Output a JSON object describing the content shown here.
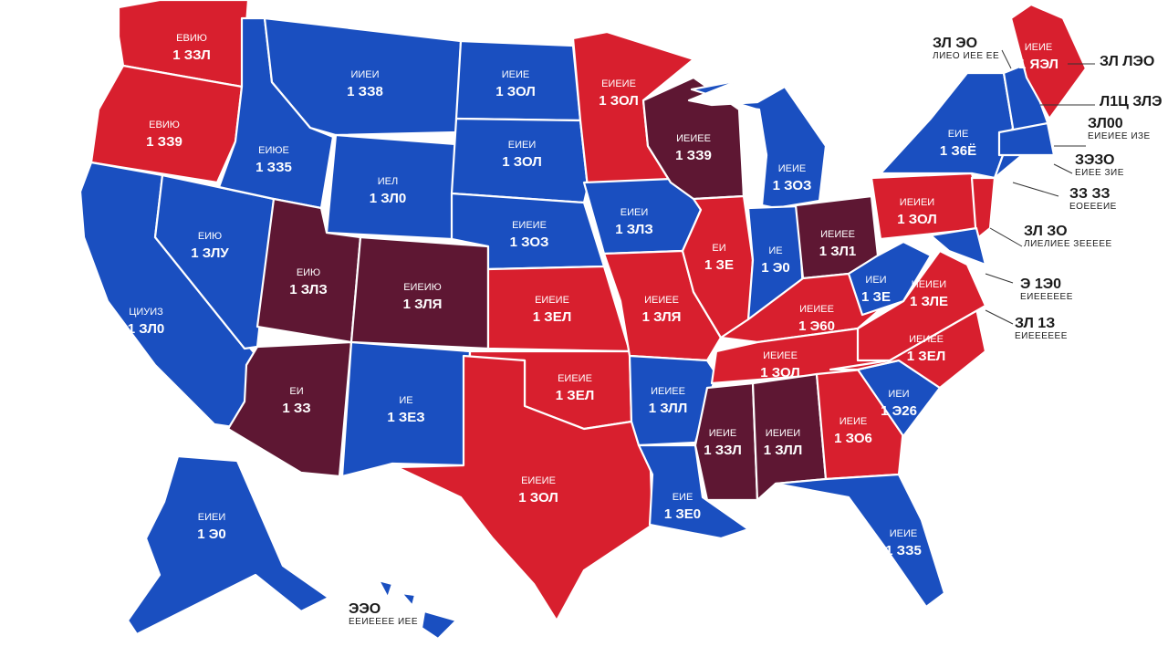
{
  "colors": {
    "red": "#d81f2e",
    "blue": "#1a4fc0",
    "purple": "#5e1733",
    "background": "#ffffff",
    "lake": "#ffffff"
  },
  "states": [
    {
      "id": "WA",
      "party": "red",
      "abbr": "ЕВИЮ",
      "num": "1 ЗЗЛ"
    },
    {
      "id": "OR",
      "party": "red",
      "abbr": "ЕВИЮ",
      "num": "1 ЗЗ9"
    },
    {
      "id": "CA",
      "party": "blue",
      "abbr": "ЦИУИЗ",
      "num": "1 ЗЛ0"
    },
    {
      "id": "NV",
      "party": "blue",
      "abbr": "ЕИЮ",
      "num": "1 ЗЛУ"
    },
    {
      "id": "ID",
      "party": "blue",
      "abbr": "ЕИЮЕ",
      "num": "1 ЗЗ5"
    },
    {
      "id": "MT",
      "party": "blue",
      "abbr": "ИИЕИ",
      "num": "1 ЗЗ8"
    },
    {
      "id": "WY",
      "party": "blue",
      "abbr": "ИЕЛ",
      "num": "1 ЗЛ0"
    },
    {
      "id": "UT",
      "party": "purple",
      "abbr": "ЕИЮ",
      "num": "1 ЗЛЗ"
    },
    {
      "id": "CO",
      "party": "purple",
      "abbr": "ЕИЕИЮ",
      "num": "1 ЗЛЯ"
    },
    {
      "id": "AZ",
      "party": "purple",
      "abbr": "ЕИ",
      "num": "1 ЗЗ"
    },
    {
      "id": "NM",
      "party": "blue",
      "abbr": "ИЕ",
      "num": "1 ЗЕЗ"
    },
    {
      "id": "ND",
      "party": "blue",
      "abbr": "ИЕИЕ",
      "num": "1 ЗОЛ"
    },
    {
      "id": "SD",
      "party": "blue",
      "abbr": "ЕИЕИ",
      "num": "1 ЗОЛ"
    },
    {
      "id": "NE",
      "party": "blue",
      "abbr": "ЕИЕИЕ",
      "num": "1 ЗОЗ"
    },
    {
      "id": "KS",
      "party": "red",
      "abbr": "ЕИЕИЕ",
      "num": "1 ЗЕЛ"
    },
    {
      "id": "OK",
      "party": "red",
      "abbr": "ЕИЕИЕ",
      "num": "1 ЗЕЛ"
    },
    {
      "id": "TX",
      "party": "red",
      "abbr": "ЕИЕИЕ",
      "num": "1 ЗОЛ"
    },
    {
      "id": "MN",
      "party": "red",
      "abbr": "ЕИЕИЕ",
      "num": "1 ЗОЛ"
    },
    {
      "id": "IA",
      "party": "blue",
      "abbr": "ЕИЕИ",
      "num": "1 ЗЛЗ"
    },
    {
      "id": "MO",
      "party": "red",
      "abbr": "ИЕИЕЕ",
      "num": "1 ЗЛЯ"
    },
    {
      "id": "AR",
      "party": "blue",
      "abbr": "ИЕИЕЕ",
      "num": "1 ЗЛЛ"
    },
    {
      "id": "LA",
      "party": "blue",
      "abbr": "ЕИЕ",
      "num": "1 ЗЕ0"
    },
    {
      "id": "WI",
      "party": "purple",
      "abbr": "ИЕИЕЕ",
      "num": "1 ЗЗ9"
    },
    {
      "id": "IL",
      "party": "red",
      "abbr": "ЕИ",
      "num": "1 ЗЕ"
    },
    {
      "id": "MI",
      "party": "blue",
      "abbr": "ИЕИЕ",
      "num": "1 ЗОЗ"
    },
    {
      "id": "IN",
      "party": "blue",
      "abbr": "ИЕ",
      "num": "1 Э0"
    },
    {
      "id": "OH",
      "party": "purple",
      "abbr": "ИЕИЕЕ",
      "num": "1 ЗЛ1"
    },
    {
      "id": "KY",
      "party": "red",
      "abbr": "ИЕИЕЕ",
      "num": "1 Э60"
    },
    {
      "id": "TN",
      "party": "red",
      "abbr": "ИЕИЕЕ",
      "num": "1 ЗОЛ"
    },
    {
      "id": "MS",
      "party": "purple",
      "abbr": "ИЕИЕ",
      "num": "1 ЗЗЛ"
    },
    {
      "id": "AL",
      "party": "purple",
      "abbr": "ИЕИЕИ",
      "num": "1 ЗЛЛ"
    },
    {
      "id": "GA",
      "party": "red",
      "abbr": "ИЕИЕ",
      "num": "1 ЗО6"
    },
    {
      "id": "FL",
      "party": "blue",
      "abbr": "ИЕИЕ",
      "num": "1 ЗЗ5"
    },
    {
      "id": "SC",
      "party": "blue",
      "abbr": "ИЕИ",
      "num": "1 Э26"
    },
    {
      "id": "NC",
      "party": "red",
      "abbr": "ИЕИЕЕ",
      "num": "1 ЗЕЛ"
    },
    {
      "id": "VA",
      "party": "red",
      "abbr": "ИЕИЕИ",
      "num": "1 ЗЛЕ"
    },
    {
      "id": "WV",
      "party": "blue",
      "abbr": "ИЕИ",
      "num": "1 ЗЕ"
    },
    {
      "id": "PA",
      "party": "red",
      "abbr": "ИЕИЕИ",
      "num": "1 ЗОЛ"
    },
    {
      "id": "NY",
      "party": "blue",
      "abbr": "ЕИЕ",
      "num": "1 З6Ё"
    },
    {
      "id": "ME",
      "party": "red",
      "abbr": "ИЕИЕ",
      "num": "1 ЯЭЛ"
    },
    {
      "id": "AK",
      "party": "blue",
      "abbr": "ЕИЕИ",
      "num": "1 Э0"
    }
  ],
  "callouts": [
    {
      "big": "ЗЛ ЭО",
      "small": "ЛИЕО ИЕЕ ЕЕ"
    },
    {
      "big": "ЗЛ ЛЭО",
      "small": ""
    },
    {
      "big": "Л1Ц ЗЛЭ",
      "small": ""
    },
    {
      "big": "ЗЛ00",
      "small": "ЕИЕИЕЕ ИЗЕ"
    },
    {
      "big": "ЗЭЗО",
      "small": "ЕИЕЕ ЗИЕ"
    },
    {
      "big": "ЗЗ ЗЗ",
      "small": "ЕОЕЕЕИЕ"
    },
    {
      "big": "ЗЛ ЗО",
      "small": "ЛИЕЛИЕЕ ЗЕЕЕЕЕ"
    },
    {
      "big": "Э 1Э0",
      "small": "ЕИЕЕЕЕЕЕ"
    },
    {
      "big": "ЗЛ 1З",
      "small": "ЕИЕЕЕЕЕЕ"
    },
    {
      "big": "ЭЭО",
      "small": "ЕЕИЕЕЕЕ ИЕЕ"
    }
  ]
}
